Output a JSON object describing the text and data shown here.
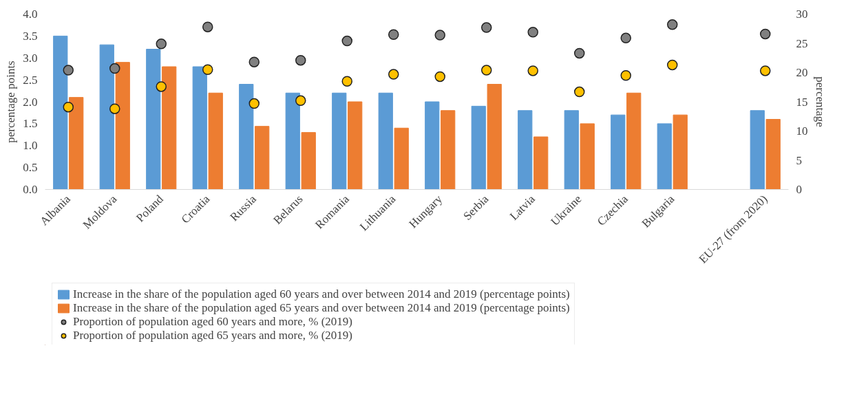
{
  "chart_data": {
    "type": "bar",
    "ylabel": "percentage points",
    "y2label": "percentage",
    "categories": [
      "Albania",
      "Moldova",
      "Poland",
      "Croatia",
      "Russia",
      "Belarus",
      "Romania",
      "Lithuania",
      "Hungary",
      "Serbia",
      "Latvia",
      "Ukraine",
      "Czechia",
      "Bulgaria",
      null,
      "EU-27 (from 2020)"
    ],
    "ylim": [
      0,
      4
    ],
    "yticks": [
      {
        "value": 0,
        "label": "0.0"
      },
      {
        "value": 0.5,
        "label": "0.5"
      },
      {
        "value": 1,
        "label": "1.0"
      },
      {
        "value": 1.5,
        "label": "1.5"
      },
      {
        "value": 2,
        "label": "2.0"
      },
      {
        "value": 2.5,
        "label": "2.5"
      },
      {
        "value": 3,
        "label": "3.0"
      },
      {
        "value": 3.5,
        "label": "3.5"
      },
      {
        "value": 4,
        "label": "4.0"
      }
    ],
    "y2lim": [
      0,
      30
    ],
    "y2ticks": [
      0,
      5,
      10,
      15,
      20,
      25,
      30
    ],
    "grid": false,
    "legend": "bottom",
    "series": [
      {
        "name": "Increase in the share of the population aged 60 years and over between 2014 and 2019 (percentage points)",
        "color": "#5b9bd5",
        "values": [
          3.5,
          3.3,
          3.2,
          2.8,
          2.4,
          2.2,
          2.2,
          2.2,
          2.0,
          1.9,
          1.8,
          1.8,
          1.7,
          1.5,
          null,
          1.8
        ]
      },
      {
        "name": "Increase in the share of the population aged 65 years and over between 2014 and 2019 (percentage points)",
        "color": "#ed7d31",
        "values": [
          2.1,
          2.9,
          2.8,
          2.2,
          1.44,
          1.3,
          2.0,
          1.4,
          1.8,
          2.4,
          1.2,
          1.5,
          2.2,
          1.7,
          null,
          1.6
        ]
      },
      {
        "name": "Proportion of population aged 60 years and more, % (2019)",
        "type": "scatter",
        "axis": "y2",
        "marker": "circle",
        "color": "#808080",
        "values": [
          20.4,
          20.7,
          24.9,
          27.8,
          21.8,
          22.1,
          25.4,
          26.5,
          26.4,
          27.7,
          26.9,
          23.3,
          25.9,
          28.2,
          null,
          26.6
        ]
      },
      {
        "name": "Proportion of population aged 65 years and more, % (2019)",
        "type": "scatter",
        "axis": "y2",
        "marker": "circle",
        "color": "#ffc000",
        "values": [
          14.1,
          13.8,
          17.6,
          20.5,
          14.7,
          15.2,
          18.5,
          19.7,
          19.3,
          20.4,
          20.3,
          16.7,
          19.5,
          21.3,
          null,
          20.3
        ]
      }
    ]
  }
}
